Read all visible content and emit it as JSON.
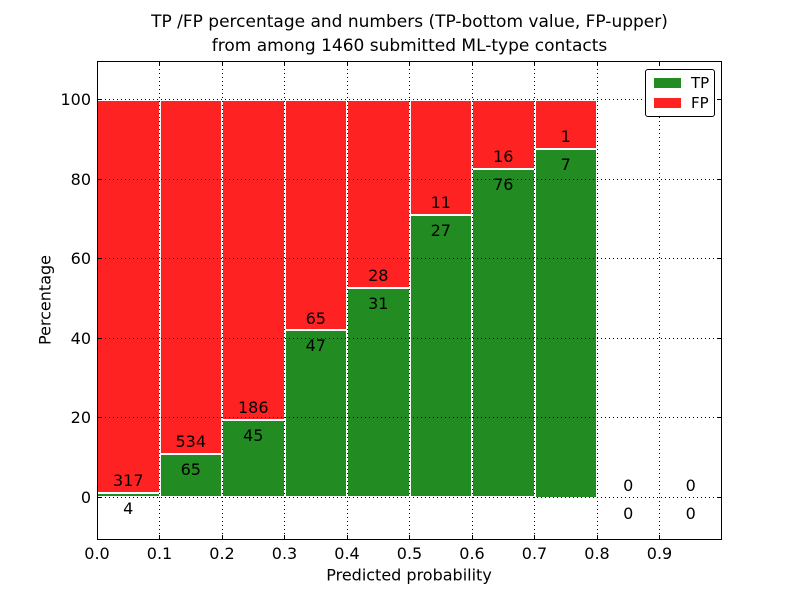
{
  "title_line1": "TP /FP percentage and numbers (TP-bottom value, FP-upper)",
  "title_line2": "from among 1460 submitted ML-type contacts",
  "colors": {
    "tp": "#228B22",
    "fp": "#FF2222",
    "bar_edge": "#FFFFFF",
    "grid": "#000000",
    "frame": "#000000",
    "background": "#FFFFFF",
    "text": "#000000"
  },
  "chart_data": {
    "type": "bar",
    "stacked": true,
    "title": "TP /FP percentage and numbers (TP-bottom value, FP-upper) from among 1460 submitted ML-type contacts",
    "xlabel": "Predicted probability",
    "ylabel": "Percentage",
    "xlim": [
      0.0,
      1.0
    ],
    "ylim": [
      -11,
      110
    ],
    "grid": true,
    "grid_style": "dotted",
    "total_contacts": 1460,
    "bin_width": 0.1,
    "x_tick_labels": [
      "0.0",
      "0.1",
      "0.2",
      "0.3",
      "0.4",
      "0.5",
      "0.6",
      "0.7",
      "0.8",
      "0.9"
    ],
    "y_ticks": [
      0,
      20,
      40,
      60,
      80,
      100
    ],
    "y_tick_labels": [
      "0",
      "20",
      "40",
      "60",
      "80",
      "100"
    ],
    "categories": [
      "0.0-0.1",
      "0.1-0.2",
      "0.2-0.3",
      "0.3-0.4",
      "0.4-0.5",
      "0.5-0.6",
      "0.6-0.7",
      "0.7-0.8",
      "0.8-0.9",
      "0.9-1.0"
    ],
    "series": [
      {
        "name": "TP",
        "color": "#228B22",
        "values": [
          4,
          65,
          45,
          47,
          31,
          27,
          76,
          7,
          0,
          0
        ]
      },
      {
        "name": "FP",
        "color": "#FF2222",
        "values": [
          317,
          534,
          186,
          65,
          28,
          11,
          16,
          1,
          0,
          0
        ]
      }
    ],
    "tp_pct": [
      1.25,
      10.85,
      19.48,
      41.96,
      52.54,
      71.05,
      82.61,
      87.5,
      null,
      null
    ],
    "fp_pct": [
      98.75,
      89.15,
      80.52,
      58.04,
      47.46,
      28.95,
      17.39,
      12.5,
      null,
      null
    ],
    "legend": {
      "position": "upper right",
      "entries": [
        {
          "label": "TP",
          "color": "#228B22"
        },
        {
          "label": "FP",
          "color": "#FF2222"
        }
      ]
    }
  }
}
